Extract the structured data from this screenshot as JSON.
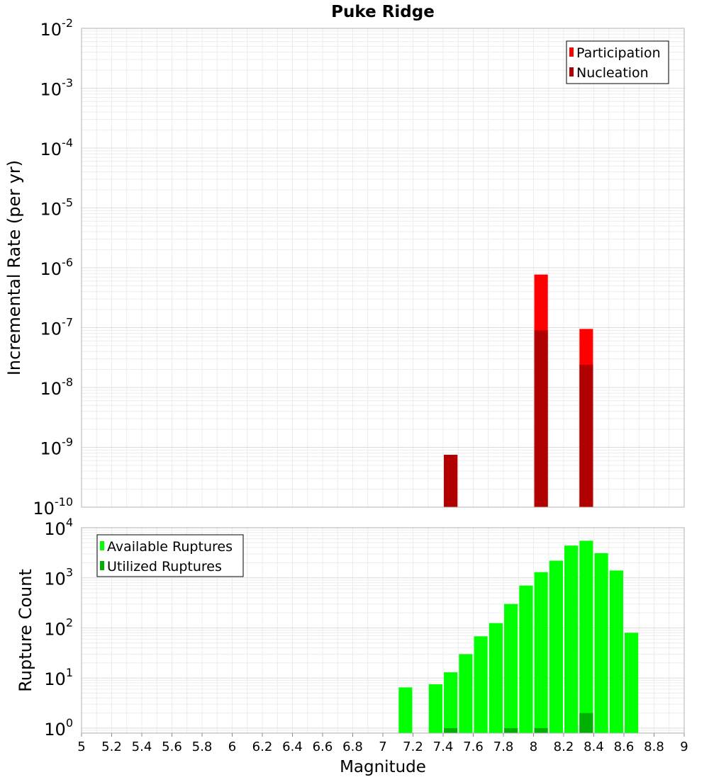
{
  "chart_data": [
    {
      "type": "bar",
      "title": "Puke Ridge",
      "ylabel": "Incremental Rate (per yr)",
      "xlabel": "",
      "y_scale": "log",
      "ylim_exp": [
        -10,
        -2
      ],
      "xlim": [
        5,
        9
      ],
      "grid": true,
      "legend_position": "top-right",
      "series": [
        {
          "name": "Participation",
          "color": "#ff0000",
          "points": [
            [
              7.45,
              7.5e-10
            ],
            [
              8.05,
              7.7e-07
            ],
            [
              8.35,
              9.5e-08
            ]
          ]
        },
        {
          "name": "Nucleation",
          "color": "#b00000",
          "points": [
            [
              7.45,
              7.5e-10
            ],
            [
              8.05,
              9e-08
            ],
            [
              8.35,
              2.4e-08
            ]
          ]
        }
      ]
    },
    {
      "type": "bar",
      "title": "",
      "ylabel": "Rupture Count",
      "xlabel": "Magnitude",
      "y_scale": "log",
      "ylim_exp": [
        -0.1,
        4
      ],
      "xlim": [
        5,
        9
      ],
      "x_ticks": [
        "5",
        "5.2",
        "5.4",
        "5.6",
        "5.8",
        "6",
        "6.2",
        "6.4",
        "6.6",
        "6.8",
        "7",
        "7.2",
        "7.4",
        "7.6",
        "7.8",
        "8",
        "8.2",
        "8.4",
        "8.6",
        "8.8",
        "9"
      ],
      "grid": true,
      "legend_position": "top-left",
      "series": [
        {
          "name": "Available Ruptures",
          "color": "#00ff00",
          "points": [
            [
              7.15,
              6.5
            ],
            [
              7.35,
              7.5
            ],
            [
              7.45,
              13
            ],
            [
              7.55,
              30
            ],
            [
              7.65,
              68
            ],
            [
              7.75,
              125
            ],
            [
              7.85,
              300
            ],
            [
              7.95,
              700
            ],
            [
              8.05,
              1300
            ],
            [
              8.15,
              2200
            ],
            [
              8.25,
              4400
            ],
            [
              8.35,
              5500
            ],
            [
              8.45,
              3100
            ],
            [
              8.55,
              1400
            ],
            [
              8.65,
              80
            ]
          ]
        },
        {
          "name": "Utilized Ruptures",
          "color": "#00b000",
          "points": [
            [
              7.45,
              1
            ],
            [
              7.85,
              1
            ],
            [
              8.05,
              1
            ],
            [
              8.35,
              2
            ]
          ]
        }
      ]
    }
  ]
}
